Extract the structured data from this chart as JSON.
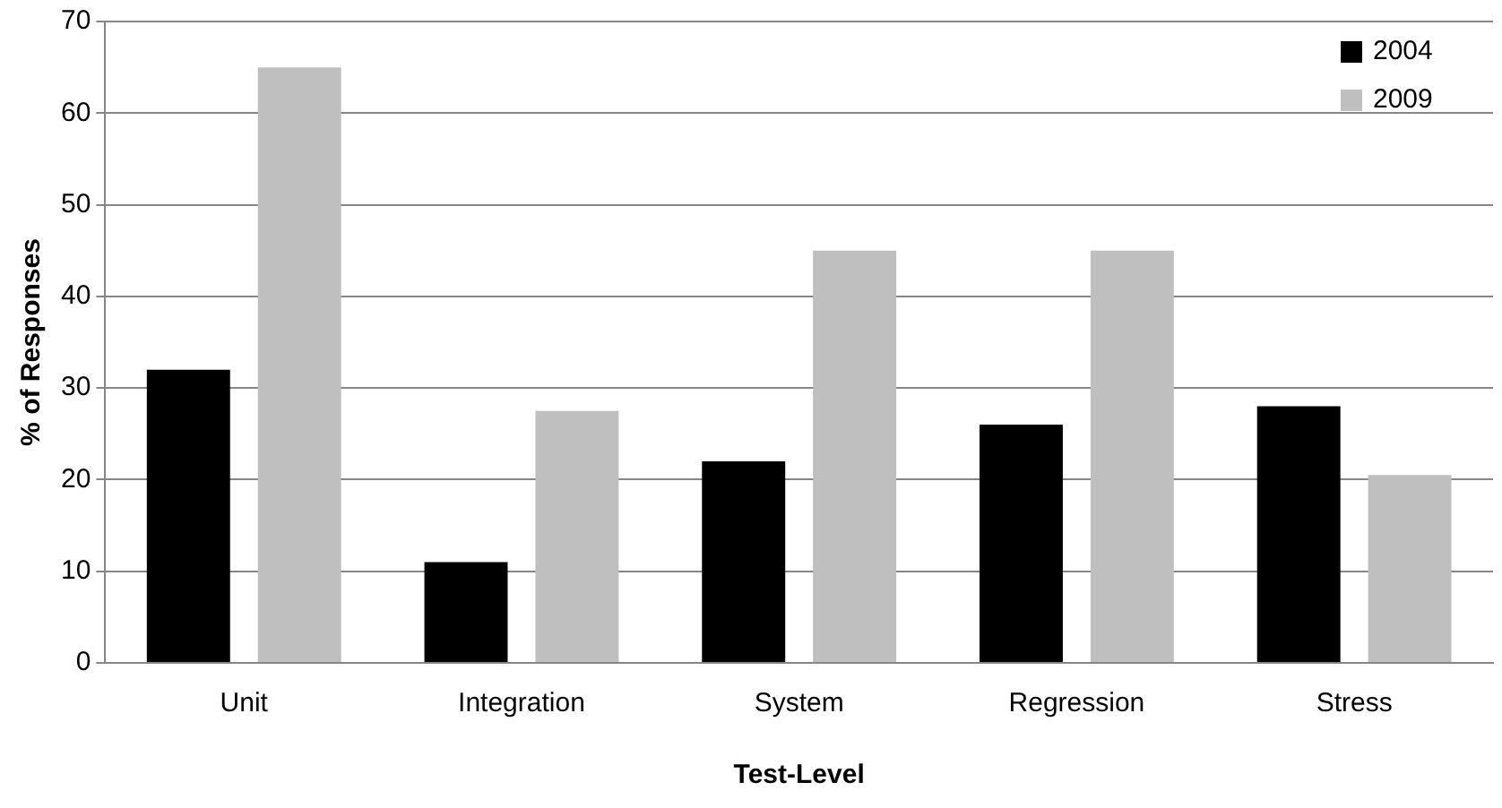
{
  "chart_data": {
    "type": "bar",
    "xlabel": "Test-Level",
    "ylabel": "% of Responses",
    "categories": [
      "Unit",
      "Integration",
      "System",
      "Regression",
      "Stress"
    ],
    "series": [
      {
        "name": "2004",
        "color": "#000000",
        "values": [
          32,
          11,
          22,
          26,
          28
        ]
      },
      {
        "name": "2009",
        "color": "#bfbfbf",
        "values": [
          65,
          27.5,
          45,
          45,
          20.5
        ]
      }
    ],
    "ylim": [
      0,
      70
    ],
    "yticks": [
      0,
      10,
      20,
      30,
      40,
      50,
      60,
      70
    ],
    "grid": "y",
    "legend": "top right"
  }
}
